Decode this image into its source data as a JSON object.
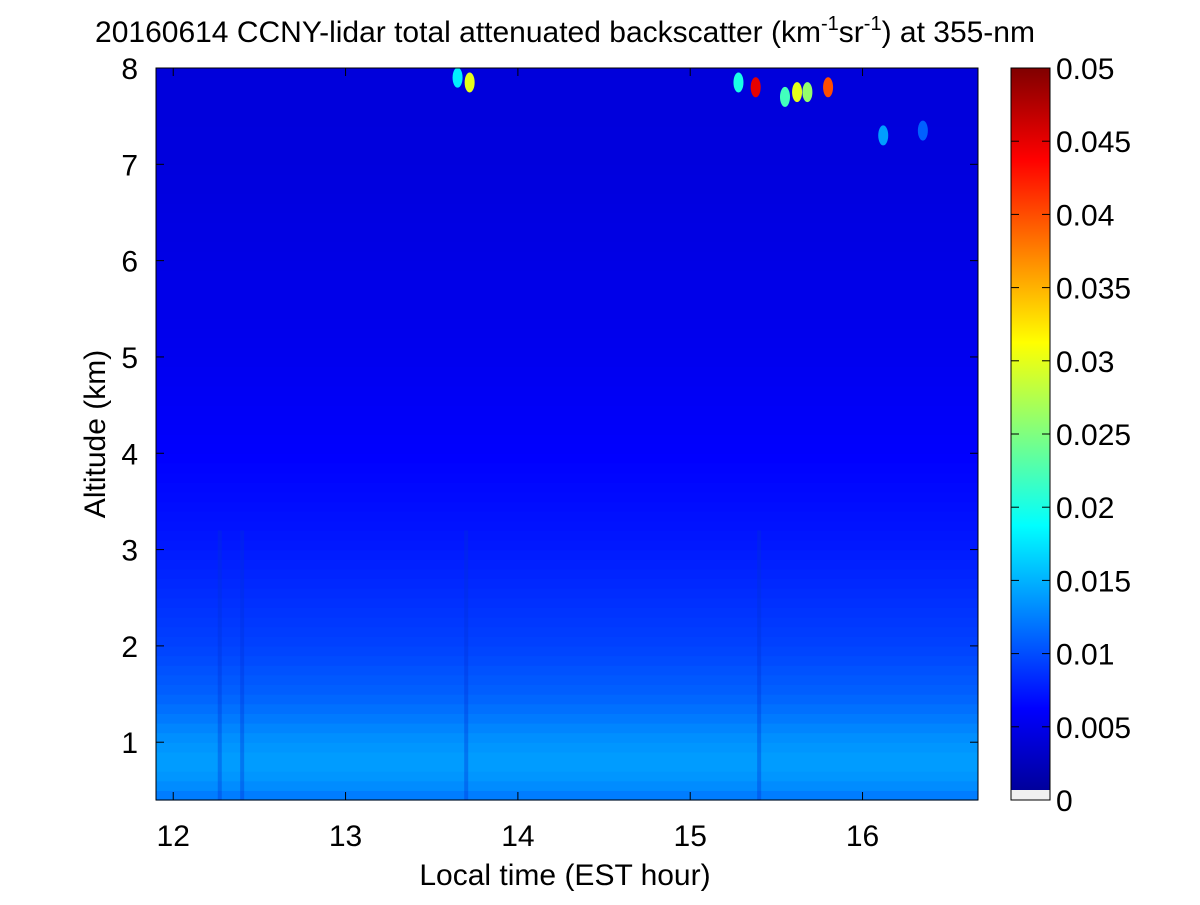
{
  "chart_data": {
    "type": "heatmap",
    "title": "20160614 CCNY-lidar total attenuated backscatter (km-1sr-1) at 355-nm",
    "title_parts": {
      "prefix": "20160614 CCNY-lidar total attenuated backscatter (km",
      "sup1": "-1",
      "mid": "sr",
      "sup2": "-1",
      "suffix": ") at 355-nm"
    },
    "xlabel": "Local time (EST hour)",
    "ylabel": "Altitude (km)",
    "xlim": [
      11.9,
      16.67
    ],
    "ylim": [
      0.4,
      8
    ],
    "xticks": [
      12,
      13,
      14,
      15,
      16
    ],
    "yticks": [
      1,
      2,
      3,
      4,
      5,
      6,
      7,
      8
    ],
    "colorbar": {
      "range": [
        0,
        0.05
      ],
      "colormap": "jet",
      "ticks": [
        0,
        0.005,
        0.01,
        0.015,
        0.02,
        0.025,
        0.03,
        0.035,
        0.04,
        0.045,
        0.05
      ],
      "tick_labels": [
        "0",
        "0.005",
        "0.01",
        "0.015",
        "0.02",
        "0.025",
        "0.03",
        "0.035",
        "0.04",
        "0.045",
        "0.05"
      ]
    },
    "backscatter_profile": {
      "altitude_km": [
        0.4,
        0.6,
        0.8,
        1.0,
        1.2,
        1.5,
        2.0,
        2.5,
        3.0,
        3.5,
        4.0,
        5.0,
        6.0,
        7.0,
        8.0
      ],
      "value": [
        0.012,
        0.0135,
        0.014,
        0.0135,
        0.0125,
        0.011,
        0.0095,
        0.0085,
        0.0075,
        0.0068,
        0.0062,
        0.0055,
        0.005,
        0.0046,
        0.0045
      ]
    },
    "dark_stripes_time_hr": [
      12.27,
      12.4,
      13.7,
      15.4
    ],
    "cloud_features": [
      {
        "time_hr": 13.65,
        "altitude_km": 7.9,
        "value": 0.018
      },
      {
        "time_hr": 13.72,
        "altitude_km": 7.85,
        "value": 0.03
      },
      {
        "time_hr": 15.28,
        "altitude_km": 7.85,
        "value": 0.02
      },
      {
        "time_hr": 15.38,
        "altitude_km": 7.8,
        "value": 0.045
      },
      {
        "time_hr": 15.55,
        "altitude_km": 7.7,
        "value": 0.022
      },
      {
        "time_hr": 15.62,
        "altitude_km": 7.75,
        "value": 0.03
      },
      {
        "time_hr": 15.68,
        "altitude_km": 7.75,
        "value": 0.026
      },
      {
        "time_hr": 15.8,
        "altitude_km": 7.8,
        "value": 0.04
      },
      {
        "time_hr": 16.12,
        "altitude_km": 7.3,
        "value": 0.014
      },
      {
        "time_hr": 16.35,
        "altitude_km": 7.35,
        "value": 0.011
      }
    ]
  }
}
